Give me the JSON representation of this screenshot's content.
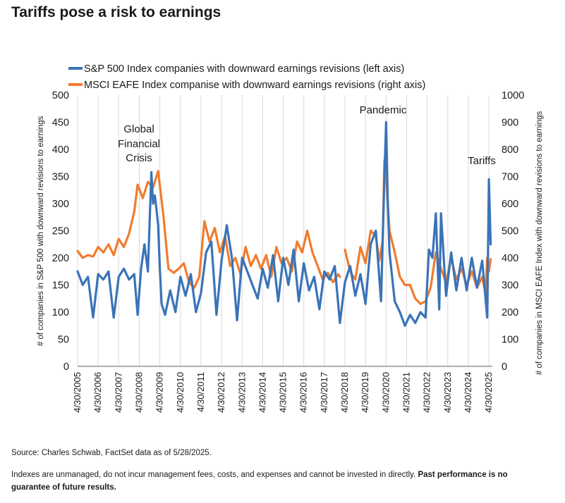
{
  "title": "Tariffs pose a risk to earnings",
  "source": "Source: Charles Schwab, FactSet data as of 5/28/2025.",
  "disclaimer": "Indexes are unmanaged, do not incur management fees, costs, and expenses and cannot be invested in directly.",
  "disclaimer_bold": "Past performance is no guarantee of future results.",
  "chart_data": {
    "type": "line",
    "ylabel_left": "# of companies in S&P 500 with downward revisions to earnings",
    "ylabel_right": "# of companies in MSCI EAFE Index with downward revisions to earnings",
    "ylim_left": [
      0,
      500
    ],
    "ylim_right": [
      0,
      1000
    ],
    "yticks_left": [
      0,
      50,
      100,
      150,
      200,
      250,
      300,
      350,
      400,
      450,
      500
    ],
    "yticks_right": [
      0,
      100,
      200,
      300,
      400,
      500,
      600,
      700,
      800,
      900,
      1000
    ],
    "xlim": [
      "2005-04-30",
      "2025-06-30"
    ],
    "xtick_labels": [
      "4/30/2005",
      "4/30/2006",
      "4/30/2007",
      "4/30/2008",
      "4/30/2009",
      "4/30/2010",
      "4/30/2011",
      "4/30/2012",
      "4/30/2013",
      "4/30/2014",
      "4/30/2015",
      "4/30/2016",
      "4/30/2017",
      "4/30/2018",
      "4/30/2019",
      "4/30/2020",
      "4/30/2021",
      "4/30/2022",
      "4/30/2023",
      "4/30/2024",
      "4/30/2025"
    ],
    "legend_placement": "top",
    "grid": "vertical",
    "series": [
      {
        "name": "S&P 500 Index companies with downward earnings revisions (left axis)",
        "axis": "left",
        "color": "#3a73b8",
        "points": [
          [
            "2005-04-30",
            175
          ],
          [
            "2005-07-31",
            150
          ],
          [
            "2005-10-31",
            165
          ],
          [
            "2006-01-31",
            90
          ],
          [
            "2006-04-30",
            170
          ],
          [
            "2006-07-31",
            160
          ],
          [
            "2006-10-31",
            175
          ],
          [
            "2007-01-31",
            90
          ],
          [
            "2007-04-30",
            165
          ],
          [
            "2007-07-31",
            180
          ],
          [
            "2007-10-31",
            160
          ],
          [
            "2008-01-31",
            170
          ],
          [
            "2008-03-31",
            95
          ],
          [
            "2008-05-31",
            180
          ],
          [
            "2008-07-31",
            225
          ],
          [
            "2008-09-30",
            175
          ],
          [
            "2008-11-30",
            358
          ],
          [
            "2008-12-31",
            300
          ],
          [
            "2009-01-31",
            315
          ],
          [
            "2009-02-28",
            290
          ],
          [
            "2009-03-31",
            260
          ],
          [
            "2009-04-30",
            180
          ],
          [
            "2009-05-31",
            115
          ],
          [
            "2009-07-31",
            95
          ],
          [
            "2009-10-31",
            140
          ],
          [
            "2010-01-31",
            100
          ],
          [
            "2010-04-30",
            165
          ],
          [
            "2010-07-31",
            130
          ],
          [
            "2010-10-31",
            170
          ],
          [
            "2011-01-31",
            100
          ],
          [
            "2011-04-30",
            135
          ],
          [
            "2011-07-31",
            210
          ],
          [
            "2011-10-31",
            230
          ],
          [
            "2012-01-31",
            95
          ],
          [
            "2012-04-30",
            195
          ],
          [
            "2012-07-31",
            260
          ],
          [
            "2012-10-31",
            200
          ],
          [
            "2013-01-31",
            85
          ],
          [
            "2013-04-30",
            200
          ],
          [
            "2013-07-31",
            175
          ],
          [
            "2013-10-31",
            150
          ],
          [
            "2014-01-31",
            125
          ],
          [
            "2014-04-30",
            180
          ],
          [
            "2014-07-31",
            145
          ],
          [
            "2014-10-31",
            205
          ],
          [
            "2015-01-31",
            120
          ],
          [
            "2015-04-30",
            200
          ],
          [
            "2015-07-31",
            150
          ],
          [
            "2015-10-31",
            215
          ],
          [
            "2016-01-31",
            120
          ],
          [
            "2016-04-30",
            190
          ],
          [
            "2016-07-31",
            140
          ],
          [
            "2016-10-31",
            165
          ],
          [
            "2017-01-31",
            105
          ],
          [
            "2017-04-30",
            175
          ],
          [
            "2017-07-31",
            160
          ],
          [
            "2017-10-31",
            185
          ],
          [
            "2018-01-31",
            80
          ],
          [
            "2018-04-30",
            155
          ],
          [
            "2018-07-31",
            185
          ],
          [
            "2018-10-31",
            130
          ],
          [
            "2019-01-31",
            170
          ],
          [
            "2019-04-30",
            115
          ],
          [
            "2019-07-31",
            225
          ],
          [
            "2019-10-31",
            250
          ],
          [
            "2020-01-31",
            120
          ],
          [
            "2020-03-31",
            350
          ],
          [
            "2020-04-30",
            450
          ],
          [
            "2020-05-31",
            300
          ],
          [
            "2020-06-30",
            210
          ],
          [
            "2020-09-30",
            120
          ],
          [
            "2020-12-31",
            100
          ],
          [
            "2021-03-31",
            75
          ],
          [
            "2021-06-30",
            95
          ],
          [
            "2021-09-30",
            80
          ],
          [
            "2021-12-31",
            100
          ],
          [
            "2022-03-31",
            90
          ],
          [
            "2022-05-31",
            215
          ],
          [
            "2022-07-31",
            200
          ],
          [
            "2022-09-30",
            282
          ],
          [
            "2022-11-30",
            105
          ],
          [
            "2022-12-31",
            282
          ],
          [
            "2023-03-31",
            130
          ],
          [
            "2023-06-30",
            210
          ],
          [
            "2023-09-30",
            140
          ],
          [
            "2023-12-31",
            200
          ],
          [
            "2024-03-31",
            140
          ],
          [
            "2024-06-30",
            200
          ],
          [
            "2024-09-30",
            145
          ],
          [
            "2024-12-31",
            195
          ],
          [
            "2025-03-31",
            90
          ],
          [
            "2025-04-30",
            345
          ],
          [
            "2025-05-31",
            225
          ]
        ]
      },
      {
        "name": "MSCI EAFE Index companise with downward earnings revisions (right axis)",
        "axis": "right",
        "color": "#f07c2e",
        "segments": [
          [
            [
              "2005-04-30",
              425
            ],
            [
              "2005-07-31",
              400
            ],
            [
              "2005-10-31",
              410
            ],
            [
              "2006-01-31",
              405
            ],
            [
              "2006-04-30",
              440
            ],
            [
              "2006-07-31",
              420
            ],
            [
              "2006-10-31",
              450
            ],
            [
              "2007-01-31",
              410
            ],
            [
              "2007-04-30",
              470
            ],
            [
              "2007-07-31",
              440
            ],
            [
              "2007-10-31",
              490
            ],
            [
              "2008-01-31",
              570
            ],
            [
              "2008-03-31",
              670
            ],
            [
              "2008-06-30",
              620
            ],
            [
              "2008-09-30",
              680
            ],
            [
              "2008-12-31",
              660
            ],
            [
              "2009-03-31",
              720
            ],
            [
              "2009-06-30",
              560
            ],
            [
              "2009-09-30",
              360
            ],
            [
              "2009-12-31",
              345
            ],
            [
              "2010-03-31",
              360
            ],
            [
              "2010-06-30",
              380
            ],
            [
              "2010-09-30",
              310
            ],
            [
              "2010-12-31",
              290
            ],
            [
              "2011-03-31",
              330
            ],
            [
              "2011-06-30",
              535
            ],
            [
              "2011-09-30",
              460
            ],
            [
              "2011-12-31",
              510
            ],
            [
              "2012-03-31",
              420
            ],
            [
              "2012-06-30",
              480
            ],
            [
              "2012-09-30",
              370
            ],
            [
              "2012-12-31",
              400
            ],
            [
              "2013-03-31",
              340
            ],
            [
              "2013-06-30",
              440
            ],
            [
              "2013-09-30",
              370
            ],
            [
              "2013-12-31",
              410
            ],
            [
              "2014-03-31",
              360
            ],
            [
              "2014-06-30",
              410
            ],
            [
              "2014-09-30",
              330
            ],
            [
              "2014-12-31",
              440
            ],
            [
              "2015-03-31",
              380
            ],
            [
              "2015-06-30",
              400
            ],
            [
              "2015-09-30",
              350
            ],
            [
              "2015-12-31",
              460
            ],
            [
              "2016-03-31",
              420
            ],
            [
              "2016-06-30",
              500
            ],
            [
              "2016-09-30",
              420
            ],
            [
              "2016-12-31",
              370
            ],
            [
              "2017-03-31",
              320
            ],
            [
              "2017-06-30",
              345
            ],
            [
              "2017-09-30",
              310
            ],
            [
              "2017-12-31",
              340
            ],
            [
              "2018-01-31",
              330
            ]
          ],
          [
            [
              "2018-04-30",
              430
            ],
            [
              "2018-07-31",
              350
            ],
            [
              "2018-10-31",
              320
            ],
            [
              "2019-01-31",
              440
            ],
            [
              "2019-04-30",
              380
            ],
            [
              "2019-07-31",
              500
            ],
            [
              "2019-10-31",
              480
            ],
            [
              "2019-12-31",
              390
            ],
            [
              "2020-02-29",
              460
            ],
            [
              "2020-03-31",
              760
            ],
            [
              "2020-04-30",
              700
            ],
            [
              "2020-06-30",
              500
            ],
            [
              "2020-09-30",
              420
            ],
            [
              "2020-12-31",
              330
            ],
            [
              "2021-03-31",
              300
            ],
            [
              "2021-06-30",
              300
            ],
            [
              "2021-09-30",
              250
            ],
            [
              "2021-12-31",
              230
            ],
            [
              "2022-03-31",
              240
            ],
            [
              "2022-06-30",
              290
            ],
            [
              "2022-09-30",
              420
            ],
            [
              "2022-12-31",
              360
            ],
            [
              "2023-03-31",
              310
            ],
            [
              "2023-06-30",
              400
            ],
            [
              "2023-09-30",
              320
            ],
            [
              "2023-12-31",
              360
            ],
            [
              "2024-03-31",
              300
            ],
            [
              "2024-06-30",
              350
            ],
            [
              "2024-09-30",
              290
            ],
            [
              "2024-12-31",
              330
            ],
            [
              "2025-02-28",
              270
            ],
            [
              "2025-03-31",
              400
            ],
            [
              "2025-04-30",
              350
            ],
            [
              "2025-05-31",
              395
            ]
          ]
        ]
      }
    ],
    "annotations": [
      {
        "text": "Global",
        "series_date": "2008-09-30"
      },
      {
        "text": "Financial",
        "series_date": "2008-09-30"
      },
      {
        "text": "Crisis",
        "series_date": "2008-09-30"
      },
      {
        "text": "Pandemic",
        "series_date": "2020-04-30"
      },
      {
        "text": "Tariffs",
        "series_date": "2025-04-30"
      }
    ]
  }
}
